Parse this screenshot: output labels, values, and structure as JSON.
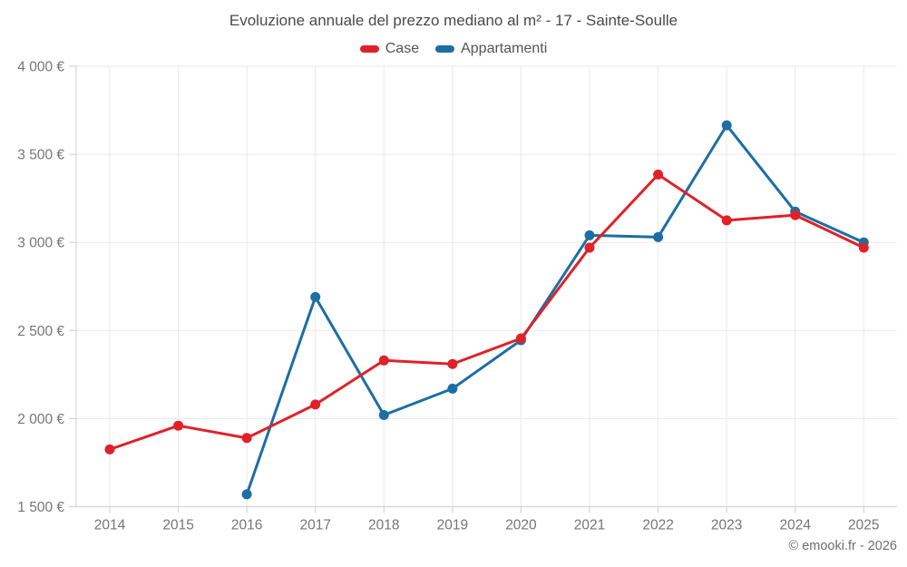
{
  "header": {
    "title": "Evoluzione annuale del prezzo mediano al m² - 17 - Sainte-Soulle"
  },
  "footer": {
    "text": "© emooki.fr - 2026"
  },
  "chart_data": {
    "type": "line",
    "title": "Evoluzione annuale del prezzo mediano al m² - 17 - Sainte-Soulle",
    "categories": [
      "2014",
      "2015",
      "2016",
      "2017",
      "2018",
      "2019",
      "2020",
      "2021",
      "2022",
      "2023",
      "2024",
      "2025"
    ],
    "series": [
      {
        "name": "Case",
        "color": "#e02128",
        "values": [
          1825,
          1960,
          1890,
          2080,
          2330,
          2310,
          2455,
          2970,
          3385,
          3125,
          3155,
          2970
        ]
      },
      {
        "name": "Appartamenti",
        "color": "#1c6ea4",
        "values": [
          null,
          null,
          1570,
          2690,
          2020,
          2170,
          2445,
          3040,
          3030,
          3665,
          3175,
          3000
        ]
      }
    ],
    "xlabel": "",
    "ylabel": "",
    "ylim": [
      1500,
      4000
    ],
    "ytick_step": 500,
    "ytick_labels": [
      "1 500 €",
      "2 000 €",
      "2 500 €",
      "3 000 €",
      "3 500 €",
      "4 000 €"
    ],
    "grid": true,
    "legend_position": "top",
    "colors": {
      "grid": "#e9e9e9",
      "axis": "#cfcfcf",
      "tick_label": "#757575",
      "title_text": "#4a4a4a",
      "legend_text": "#545454",
      "footer_text": "#6e6e6e",
      "background": "#ffffff"
    }
  }
}
